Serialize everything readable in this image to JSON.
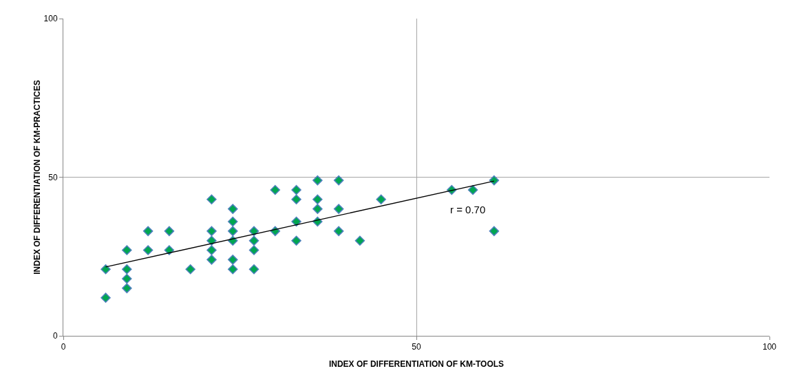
{
  "chart_data": {
    "type": "scatter",
    "xlabel": "INDEX OF DIFFERENTIATION OF KM-TOOLS",
    "ylabel": "INDEX OF DIFFERENTIATION OF KM-PRACTICES",
    "xlim": [
      0,
      100
    ],
    "xticks": [
      0,
      50,
      100
    ],
    "ylim": [
      0,
      100
    ],
    "yticks": [
      0,
      50,
      100
    ],
    "grid": true,
    "marker": "diamond",
    "series": [
      {
        "color": "#00a651",
        "x": [
          6,
          6,
          9,
          9,
          9,
          9,
          12,
          12,
          15,
          15,
          18,
          21,
          21,
          21,
          21,
          21,
          24,
          24,
          24,
          24,
          24,
          24,
          27,
          27,
          27,
          27,
          30,
          30,
          33,
          33,
          33,
          33,
          36,
          36,
          36,
          36,
          39,
          39,
          39,
          42,
          45,
          55,
          58,
          61,
          61
        ],
        "values": [
          21,
          12,
          27,
          21,
          18,
          15,
          33,
          27,
          33,
          27,
          21,
          43,
          33,
          30,
          27,
          24,
          40,
          36,
          33,
          30,
          24,
          21,
          33,
          30,
          27,
          21,
          46,
          33,
          46,
          43,
          36,
          30,
          49,
          43,
          40,
          36,
          49,
          40,
          33,
          30,
          43,
          46,
          46,
          49,
          33
        ]
      },
      {
        "type": "line",
        "marker": "none",
        "color": "#000000",
        "x": [
          6,
          61
        ],
        "values": [
          21.7,
          48.8
        ]
      }
    ],
    "annotations": [
      "r = 0.70"
    ]
  }
}
